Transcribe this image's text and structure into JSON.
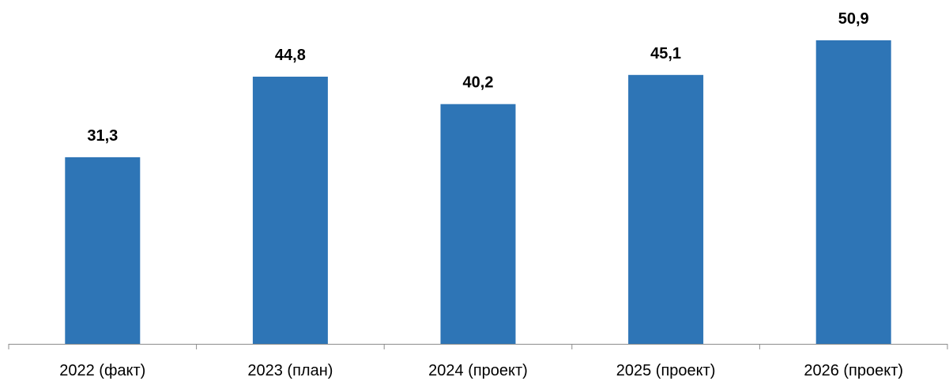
{
  "chart_data": {
    "type": "bar",
    "categories": [
      "2022 (факт)",
      "2023 (план)",
      "2024 (проект)",
      "2025 (проект)",
      "2026 (проект)"
    ],
    "values": [
      31.3,
      44.8,
      40.2,
      45.1,
      50.9
    ],
    "value_labels": [
      "31,3",
      "44,8",
      "40,2",
      "45,1",
      "50,9"
    ],
    "title": "",
    "xlabel": "",
    "ylabel": "",
    "ylim": [
      0,
      50.9
    ],
    "grid": false,
    "legend": "none",
    "colors": {
      "bar": "#2e75b6",
      "axis": "#8c8c8c",
      "text": "#000000"
    }
  }
}
